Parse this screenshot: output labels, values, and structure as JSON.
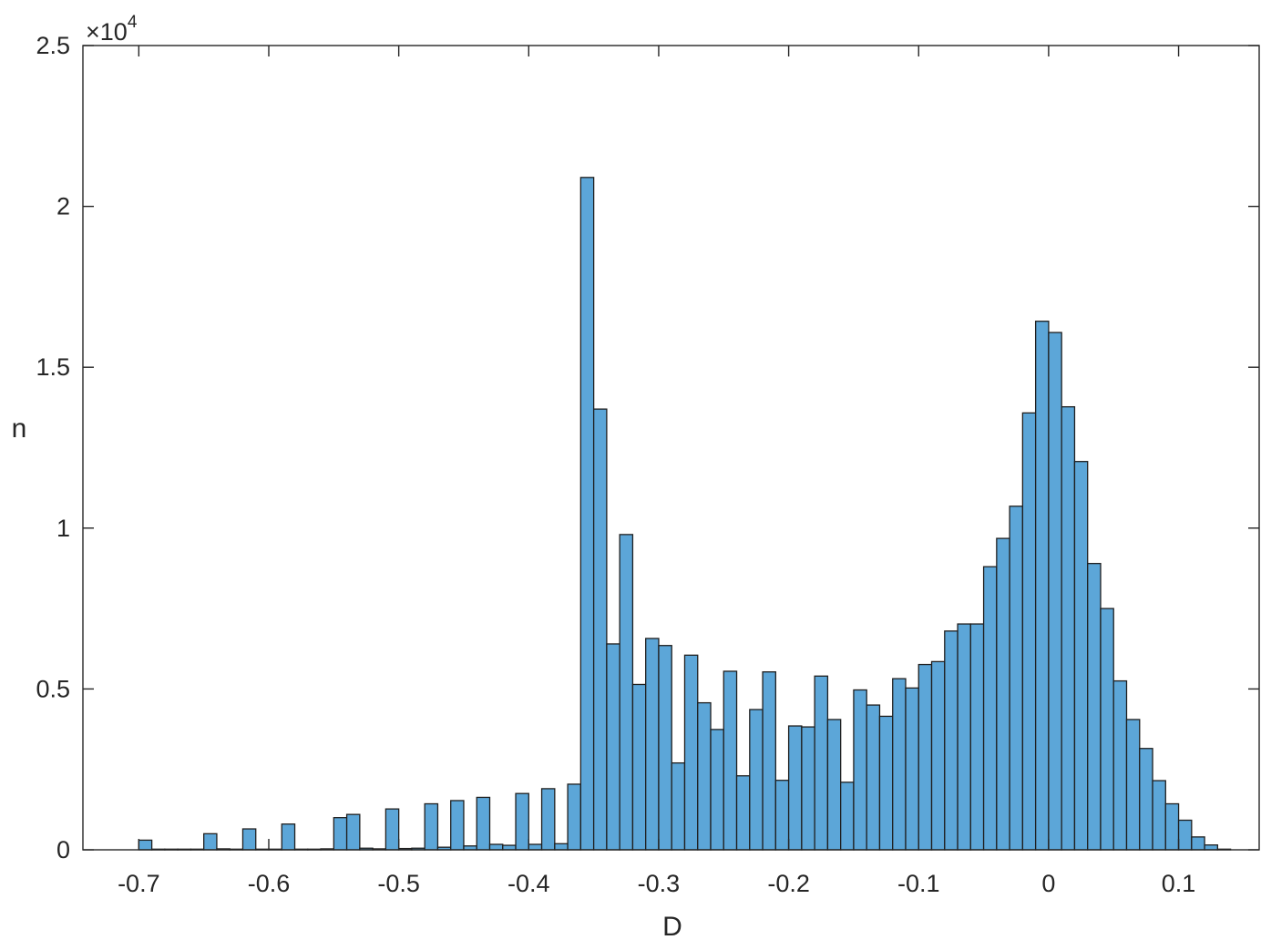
{
  "chart_data": {
    "type": "bar",
    "title": "",
    "xlabel": "D",
    "ylabel": "n",
    "y_multiplier_base": "10",
    "y_multiplier_exp": "4",
    "y_multiplier_sign": "×",
    "xlim": [
      -0.743,
      0.162
    ],
    "ylim": [
      0,
      2.5
    ],
    "x_ticks": [
      {
        "value": -0.7,
        "label": "-0.7"
      },
      {
        "value": -0.6,
        "label": "-0.6"
      },
      {
        "value": -0.5,
        "label": "-0.5"
      },
      {
        "value": -0.4,
        "label": "-0.4"
      },
      {
        "value": -0.3,
        "label": "-0.3"
      },
      {
        "value": -0.2,
        "label": "-0.2"
      },
      {
        "value": -0.1,
        "label": "-0.1"
      },
      {
        "value": 0,
        "label": "0"
      },
      {
        "value": 0.1,
        "label": "0.1"
      }
    ],
    "y_ticks": [
      {
        "value": 0,
        "label": "0"
      },
      {
        "value": 0.5,
        "label": "0.5"
      },
      {
        "value": 1,
        "label": "1"
      },
      {
        "value": 1.5,
        "label": "1.5"
      },
      {
        "value": 2,
        "label": "2"
      },
      {
        "value": 2.5,
        "label": "2.5"
      }
    ],
    "bin_width": 0.01,
    "bin_left_edges": [
      -0.7,
      -0.69,
      -0.68,
      -0.67,
      -0.66,
      -0.65,
      -0.64,
      -0.63,
      -0.62,
      -0.61,
      -0.6,
      -0.59,
      -0.58,
      -0.57,
      -0.56,
      -0.55,
      -0.54,
      -0.53,
      -0.52,
      -0.51,
      -0.5,
      -0.49,
      -0.48,
      -0.47,
      -0.46,
      -0.45,
      -0.44,
      -0.43,
      -0.42,
      -0.41,
      -0.4,
      -0.39,
      -0.38,
      -0.37,
      -0.36,
      -0.35,
      -0.34,
      -0.33,
      -0.32,
      -0.31,
      -0.3,
      -0.29,
      -0.28,
      -0.27,
      -0.26,
      -0.25,
      -0.24,
      -0.23,
      -0.22,
      -0.21,
      -0.2,
      -0.19,
      -0.18,
      -0.17,
      -0.16,
      -0.15,
      -0.14,
      -0.13,
      -0.12,
      -0.11,
      -0.1,
      -0.09,
      -0.08,
      -0.07,
      -0.06,
      -0.05,
      -0.04,
      -0.03,
      -0.02,
      -0.01,
      0.0,
      0.01,
      0.02,
      0.03,
      0.04,
      0.05,
      0.06,
      0.07,
      0.08,
      0.09,
      0.1,
      0.11,
      0.12,
      0.13
    ],
    "values": [
      0.03,
      0.002,
      0.002,
      0.002,
      0.002,
      0.05,
      0.003,
      0.002,
      0.065,
      0.002,
      0.002,
      0.08,
      0.002,
      0.002,
      0.003,
      0.1,
      0.11,
      0.005,
      0.003,
      0.127,
      0.004,
      0.005,
      0.143,
      0.008,
      0.153,
      0.012,
      0.163,
      0.017,
      0.014,
      0.175,
      0.017,
      0.19,
      0.019,
      0.204,
      2.09,
      1.37,
      0.64,
      0.98,
      0.514,
      0.657,
      0.635,
      0.27,
      0.605,
      0.457,
      0.374,
      0.555,
      0.23,
      0.436,
      0.553,
      0.216,
      0.385,
      0.382,
      0.54,
      0.405,
      0.21,
      0.497,
      0.45,
      0.415,
      0.532,
      0.503,
      0.576,
      0.585,
      0.68,
      0.702,
      0.702,
      0.88,
      0.968,
      1.068,
      1.358,
      1.643,
      1.608,
      1.377,
      1.207,
      0.89,
      0.75,
      0.525,
      0.405,
      0.315,
      0.215,
      0.143,
      0.092,
      0.04,
      0.015,
      0.002
    ],
    "bar_color": "#5ca6d8",
    "edge_color": "#1f1f1f",
    "grid": false
  }
}
